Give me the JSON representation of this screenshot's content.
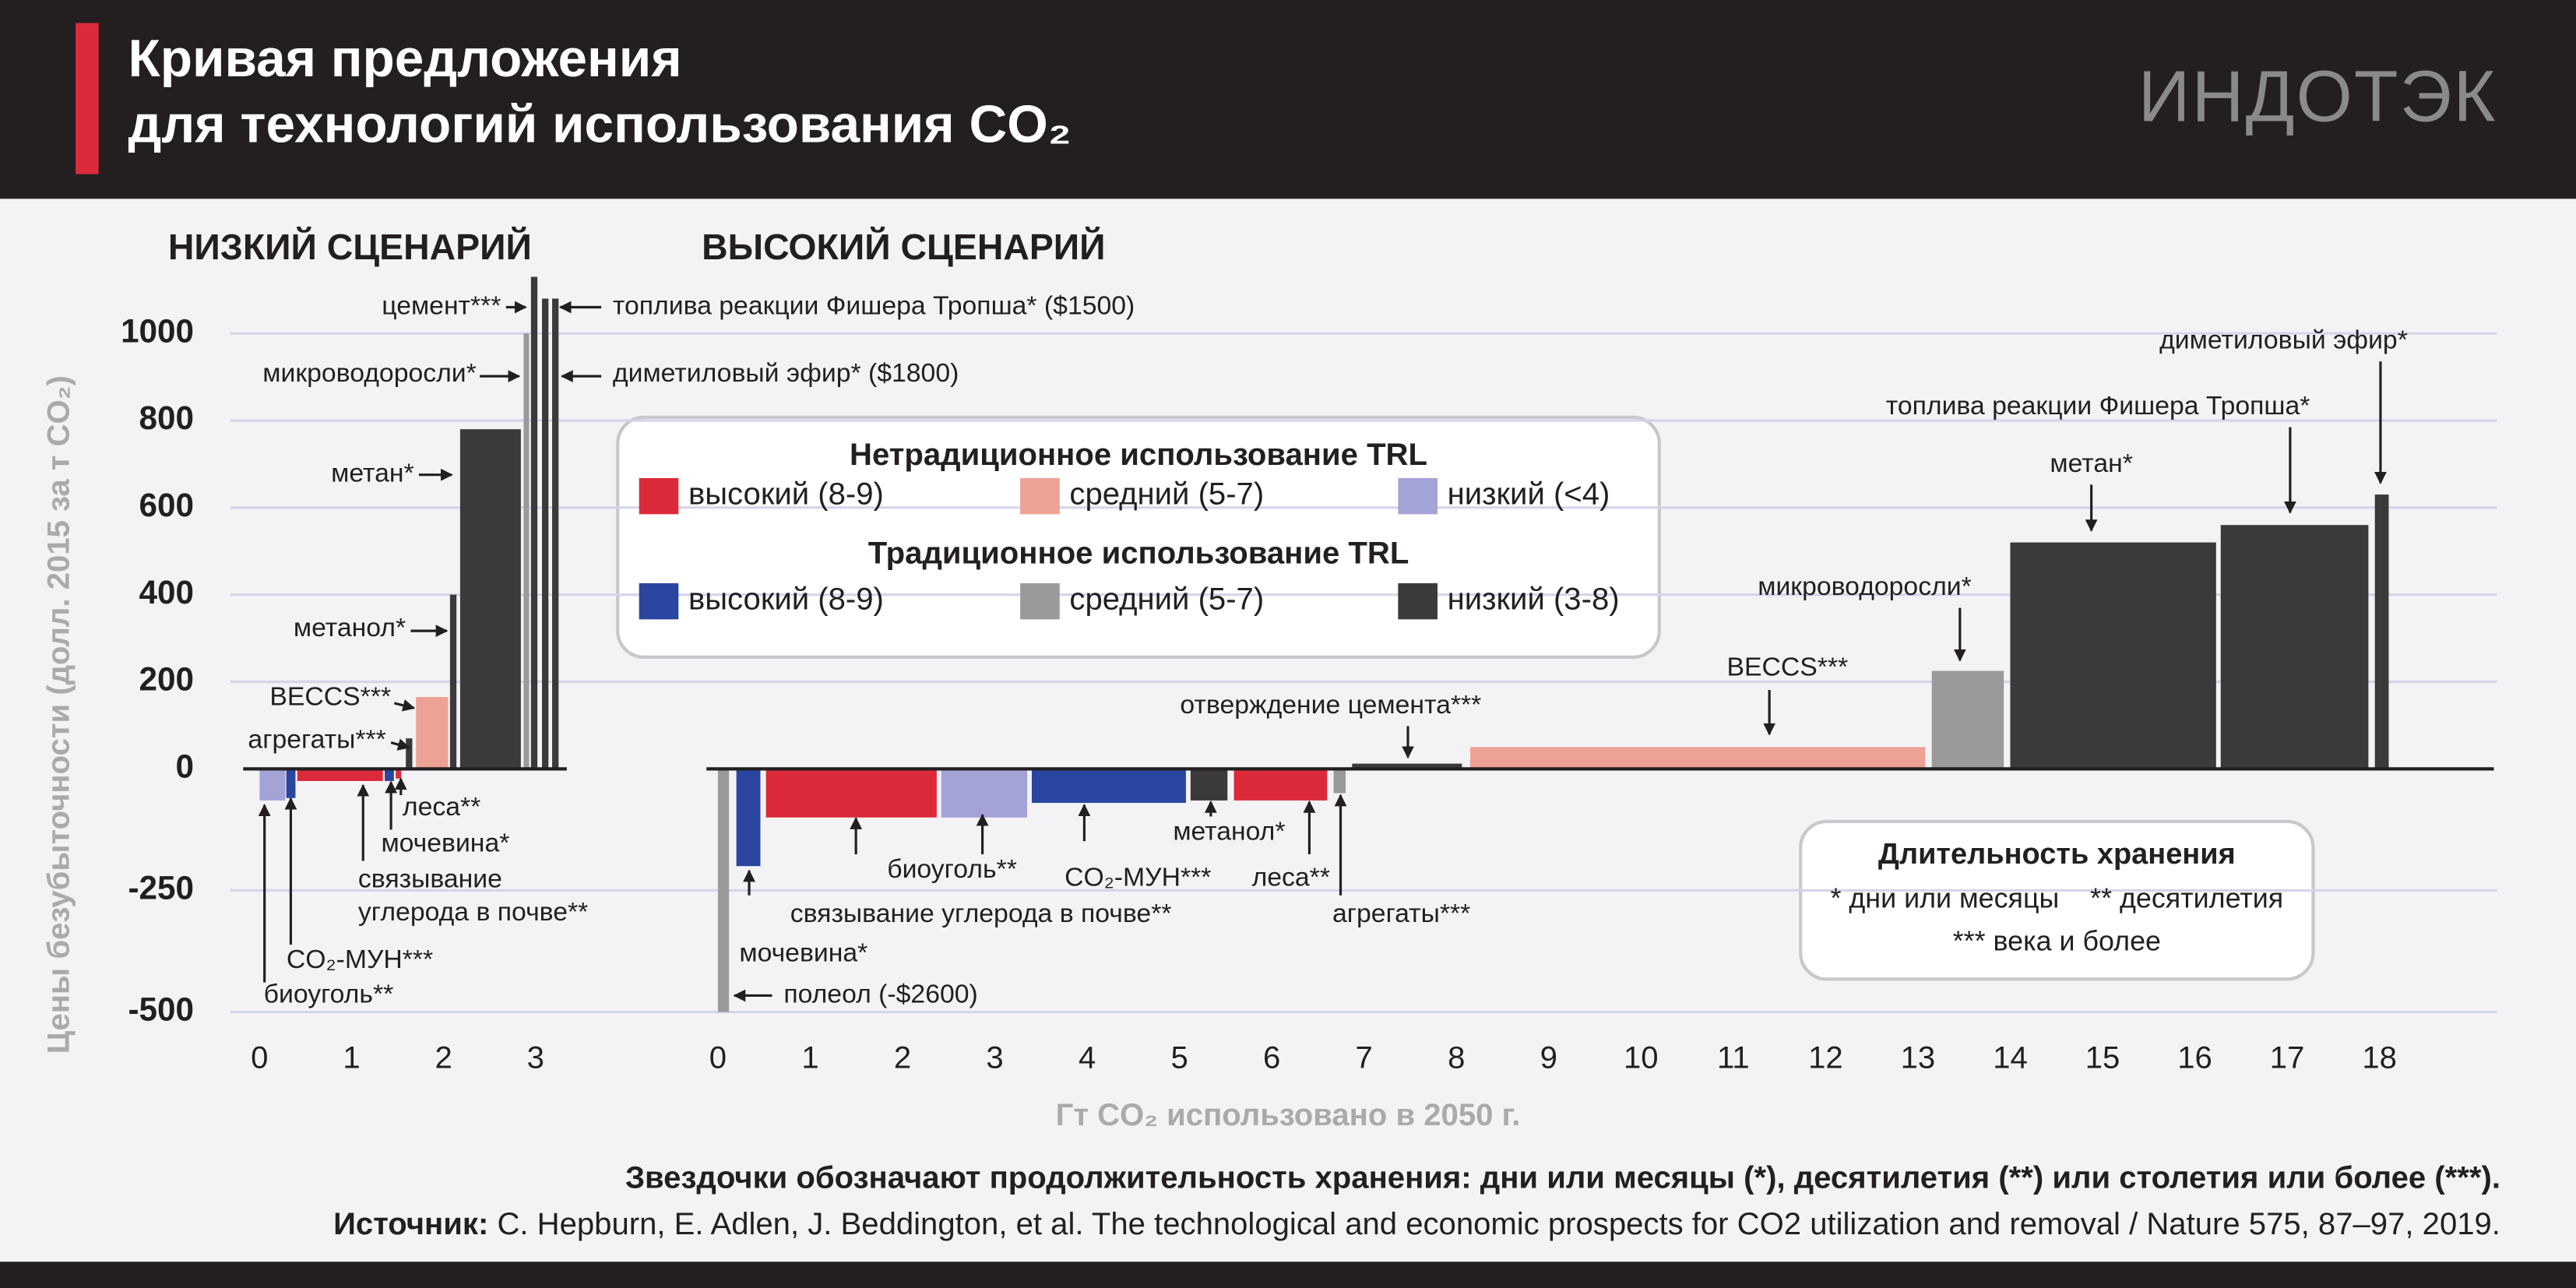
{
  "header": {
    "title": [
      "Кривая предложения",
      "для технологий использования CO₂"
    ],
    "logo": "ИНДОТЭК"
  },
  "chart_data": [
    {
      "type": "bar",
      "title": "НИЗКИЙ СЦЕНАРИЙ",
      "y_label": "Цены безубыточности (долл. 2015 за т CO₂)",
      "ylim": [
        -500,
        1130
      ],
      "yticks": [
        -500,
        -250,
        0,
        200,
        400,
        600,
        800,
        1000
      ],
      "xlim": [
        0,
        3.25
      ],
      "xticks": [
        0,
        1,
        2,
        3
      ],
      "grid": true,
      "bars": [
        {
          "label": [
            "биоуголь**"
          ],
          "x": [
            0,
            0.28
          ],
          "value": -65,
          "color": "#a3a3d6"
        },
        {
          "label": [
            "CO₂-МУН***"
          ],
          "x": [
            0.29,
            0.39
          ],
          "value": -60,
          "color": "#2a46a0"
        },
        {
          "label": [
            "связывание",
            "углерода в почве**"
          ],
          "x": [
            0.41,
            1.34
          ],
          "value": -25,
          "color": "#dc2a3a"
        },
        {
          "label": [
            "мочевина*"
          ],
          "x": [
            1.36,
            1.46
          ],
          "value": -25,
          "color": "#2a46a0"
        },
        {
          "label": [
            "леса**"
          ],
          "x": [
            1.48,
            1.54
          ],
          "value": -20,
          "color": "#dc2a3a"
        },
        {
          "label": [
            "агрегаты***"
          ],
          "x": [
            1.59,
            1.66
          ],
          "value": 70,
          "color": "#3a3a3a"
        },
        {
          "label": [
            "BECCS***"
          ],
          "x": [
            1.7,
            2.05
          ],
          "value": 165,
          "color": "#eea295"
        },
        {
          "label": [
            "метанол*"
          ],
          "x": [
            2.07,
            2.14
          ],
          "value": 400,
          "color": "#3a3a3a"
        },
        {
          "label": [
            "метан*"
          ],
          "x": [
            2.18,
            2.84
          ],
          "value": 780,
          "color": "#3a3a3a"
        },
        {
          "label": [
            "микроводоросли*"
          ],
          "x": [
            2.87,
            2.93
          ],
          "value": 1000,
          "color": "#9a9a9a"
        },
        {
          "label": [
            "цемент***"
          ],
          "x": [
            2.95,
            3.02
          ],
          "value": 1130,
          "color": "#3a3a3a"
        },
        {
          "label": [
            "топлива реакции Фишера Тропша* ($1500)"
          ],
          "x": [
            3.07,
            3.14
          ],
          "value": 1080,
          "color": "#3a3a3a"
        },
        {
          "label": [
            "диметиловый эфир* ($1800)"
          ],
          "x": [
            3.18,
            3.25
          ],
          "value": 1080,
          "color": "#3a3a3a"
        }
      ]
    },
    {
      "type": "bar",
      "title": "ВЫСОКИЙ СЦЕНАРИЙ",
      "x_label": "Гт CO₂ использовано в 2050 г.",
      "ylim": [
        -500,
        1130
      ],
      "yticks": [
        -500,
        -250,
        0,
        200,
        400,
        600,
        800,
        1000
      ],
      "xlim": [
        0,
        18.1
      ],
      "xticks": [
        0,
        1,
        2,
        3,
        4,
        5,
        6,
        7,
        8,
        9,
        10,
        11,
        12,
        13,
        14,
        15,
        16,
        17,
        18
      ],
      "grid": true,
      "bars": [
        {
          "label": [
            "полеол (-$2600)"
          ],
          "x": [
            0,
            0.12
          ],
          "value": -500,
          "color": "#9a9a9a"
        },
        {
          "label": [
            "мочевина*"
          ],
          "x": [
            0.2,
            0.46
          ],
          "value": -200,
          "color": "#2a46a0"
        },
        {
          "label": [
            "связывание углерода в почве**"
          ],
          "x": [
            0.52,
            2.37
          ],
          "value": -100,
          "color": "#dc2a3a"
        },
        {
          "label": [
            "биоуголь**"
          ],
          "x": [
            2.42,
            3.35
          ],
          "value": -100,
          "color": "#a3a3d6"
        },
        {
          "label": [
            "CO₂-МУН***"
          ],
          "x": [
            3.4,
            5.07
          ],
          "value": -70,
          "color": "#2a46a0"
        },
        {
          "label": [
            "метанол*"
          ],
          "x": [
            5.12,
            5.52
          ],
          "value": -65,
          "color": "#3a3a3a"
        },
        {
          "label": [
            "леса**"
          ],
          "x": [
            5.59,
            6.6
          ],
          "value": -65,
          "color": "#dc2a3a"
        },
        {
          "label": [
            "агрегаты***"
          ],
          "x": [
            6.67,
            6.8
          ],
          "value": -50,
          "color": "#9a9a9a"
        },
        {
          "label": [
            "отверждение цемента***"
          ],
          "x": [
            6.87,
            8.06
          ],
          "value": 12,
          "color": "#3a3a3a"
        },
        {
          "label": [
            "BECCS***"
          ],
          "x": [
            8.15,
            13.08
          ],
          "value": 50,
          "color": "#eea295"
        },
        {
          "label": [
            "микроводоросли*"
          ],
          "x": [
            13.15,
            13.93
          ],
          "value": 225,
          "color": "#9a9a9a"
        },
        {
          "label": [
            "метан*"
          ],
          "x": [
            14.0,
            16.23
          ],
          "value": 520,
          "color": "#3a3a3a"
        },
        {
          "label": [
            "топлива реакции Фишера Тропша*"
          ],
          "x": [
            16.28,
            17.88
          ],
          "value": 560,
          "color": "#3a3a3a"
        },
        {
          "label": [
            "диметиловый эфир*"
          ],
          "x": [
            17.95,
            18.1
          ],
          "value": 630,
          "color": "#3a3a3a"
        }
      ],
      "legend": [
        {
          "title": "Нетрадиционное использование TRL",
          "items": [
            {
              "label": "высокий (8-9)",
              "color": "#dc2a3a"
            },
            {
              "label": "средний (5-7)",
              "color": "#eea295"
            },
            {
              "label": "низкий (<4)",
              "color": "#a3a3d6"
            }
          ]
        },
        {
          "title": "Традиционное использование TRL",
          "items": [
            {
              "label": "высокий (8-9)",
              "color": "#2a46a0"
            },
            {
              "label": "средний (5-7)",
              "color": "#9a9a9a"
            },
            {
              "label": "низкий (3-8)",
              "color": "#3a3a3a"
            }
          ]
        }
      ],
      "storage_note": {
        "title": "Длительность хранения",
        "lines": [
          "* дни или месяцы    ** десятилетия",
          "*** века и более"
        ]
      }
    }
  ],
  "footer": {
    "note": "Звездочки обозначают продолжительность хранения: дни или месяцы (*), десятилетия (**) или столетия или более (***).",
    "source": {
      "label": "Источник:",
      "text": " C. Hepburn, E. Adlen, J. Beddington, et al. The technological and economic prospects for CO2 utilization and removal / Nature 575, 87–97, 2019."
    }
  }
}
